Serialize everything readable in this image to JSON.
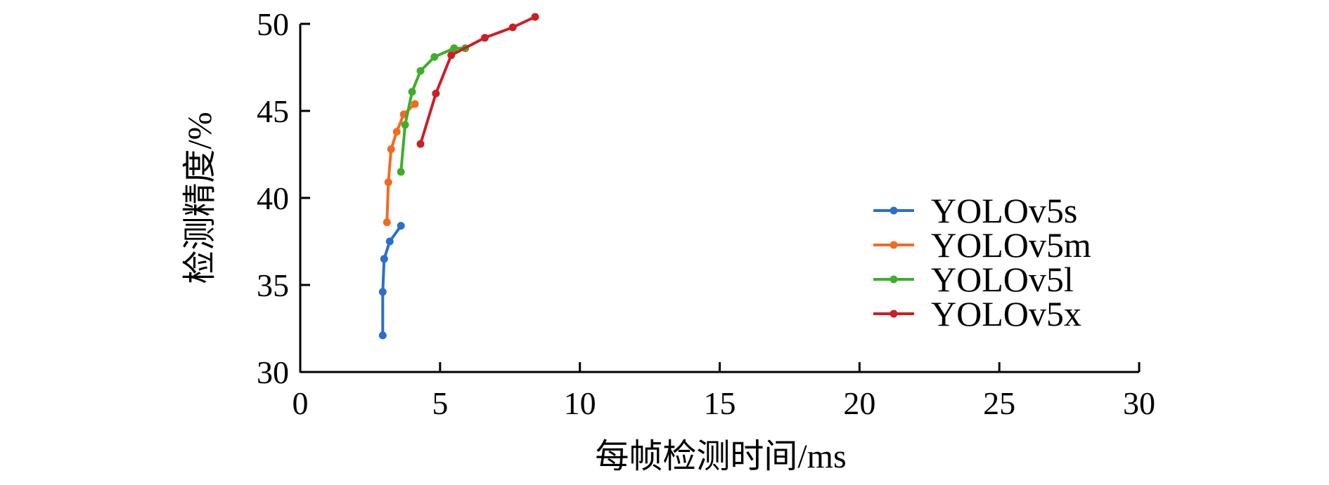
{
  "chart_data": {
    "type": "line",
    "xlabel": "每帧检测时间/ms",
    "ylabel": "检测精度/%",
    "xlim": [
      0,
      30
    ],
    "ylim": [
      30,
      50
    ],
    "xticks": [
      0,
      5,
      10,
      15,
      20,
      25,
      30
    ],
    "yticks": [
      30,
      35,
      40,
      45,
      50
    ],
    "grid": false,
    "legend_position": "right",
    "series": [
      {
        "name": "YOLOv5s",
        "color": "#2b6fce",
        "points": [
          [
            2.95,
            32.1
          ],
          [
            2.95,
            34.6
          ],
          [
            3.0,
            36.5
          ],
          [
            3.2,
            37.5
          ],
          [
            3.6,
            38.4
          ]
        ]
      },
      {
        "name": "YOLOv5m",
        "color": "#f26b21",
        "points": [
          [
            3.1,
            38.6
          ],
          [
            3.15,
            40.9
          ],
          [
            3.25,
            42.8
          ],
          [
            3.45,
            43.8
          ],
          [
            3.7,
            44.8
          ],
          [
            4.1,
            45.4
          ]
        ]
      },
      {
        "name": "YOLOv5l",
        "color": "#3fae29",
        "points": [
          [
            3.6,
            41.5
          ],
          [
            3.75,
            44.2
          ],
          [
            4.0,
            46.1
          ],
          [
            4.3,
            47.3
          ],
          [
            4.8,
            48.1
          ],
          [
            5.5,
            48.6
          ],
          [
            5.9,
            48.6
          ]
        ]
      },
      {
        "name": "YOLOv5x",
        "color": "#cc1f24",
        "points": [
          [
            4.3,
            43.1
          ],
          [
            4.85,
            46.0
          ],
          [
            5.4,
            48.2
          ],
          [
            6.6,
            49.2
          ],
          [
            7.6,
            49.8
          ],
          [
            8.4,
            50.4
          ]
        ]
      }
    ]
  }
}
